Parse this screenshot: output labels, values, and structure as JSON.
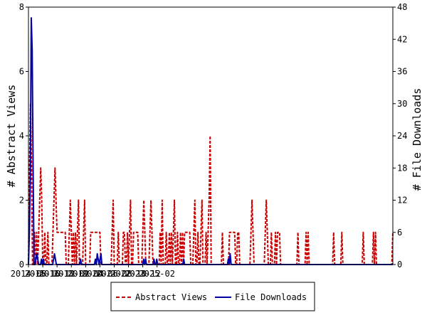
{
  "chart_data": {
    "type": "line",
    "title": "",
    "x_tick_labels": [
      "2014-08",
      "2015-10",
      "2016-12",
      "2018-02",
      "2019-04",
      "2020-06",
      "2021-08",
      "2022-10",
      "2023-12",
      "2025-02"
    ],
    "y_left": {
      "label": "# Abstract Views",
      "range": [
        0,
        8
      ],
      "ticks": [
        "0",
        "2",
        "4",
        "6",
        "8"
      ]
    },
    "y_right": {
      "label": "# File Downloads",
      "range": [
        0,
        48
      ],
      "ticks": [
        "0",
        "6",
        "12",
        "18",
        "24",
        "30",
        "36",
        "42",
        "48"
      ]
    },
    "x_range_months": [
      "2014-08",
      "2025-09"
    ],
    "grid": false,
    "legend_position": "bottom",
    "series": [
      {
        "name": "Abstract Views",
        "axis": "left",
        "color": "#cc0000",
        "style": "dashed",
        "values": [
          0,
          3,
          5,
          3,
          0,
          0,
          1,
          0,
          1,
          0,
          1,
          2,
          3,
          2,
          0,
          0,
          1,
          0,
          0,
          1,
          0,
          0,
          0,
          0,
          1,
          2,
          3,
          2,
          1,
          1,
          1,
          1,
          1,
          1,
          1,
          1,
          1,
          0,
          0,
          0,
          1,
          2,
          1,
          0,
          1,
          0,
          1,
          0,
          1,
          2,
          0,
          0,
          0,
          0,
          1,
          2,
          0,
          0,
          0,
          0,
          0,
          1,
          1,
          1,
          1,
          1,
          1,
          1,
          1,
          1,
          1,
          0,
          0,
          0,
          0,
          0,
          0,
          0,
          0,
          0,
          0,
          0,
          1,
          2,
          0,
          0,
          0,
          0,
          1,
          0,
          0,
          0,
          0,
          1,
          1,
          0,
          0,
          1,
          0,
          1,
          2,
          0,
          0,
          1,
          1,
          1,
          1,
          1,
          0,
          0,
          0,
          0,
          1,
          2,
          1,
          0,
          0,
          0,
          0,
          1,
          2,
          1,
          0,
          0,
          0,
          0,
          0,
          0,
          0,
          1,
          0,
          2,
          0,
          0,
          0,
          1,
          0,
          0,
          1,
          0,
          1,
          0,
          1,
          2,
          0,
          0,
          1,
          0,
          0,
          1,
          0,
          1,
          0,
          1,
          1,
          1,
          1,
          1,
          1,
          0,
          0,
          0,
          1,
          2,
          0,
          0,
          1,
          0,
          0,
          1,
          2,
          0,
          0,
          0,
          1,
          0,
          1,
          2,
          4,
          0,
          0,
          0,
          0,
          0,
          0,
          0,
          0,
          0,
          0,
          0,
          1,
          0,
          0,
          0,
          0,
          0,
          0,
          1,
          1,
          1,
          1,
          1,
          1,
          0,
          0,
          1,
          1,
          0,
          0,
          0,
          0,
          0,
          0,
          0,
          0,
          0,
          0,
          0,
          1,
          2,
          1,
          0,
          0,
          0,
          0,
          0,
          0,
          0,
          0,
          0,
          0,
          0,
          1,
          2,
          1,
          0,
          0,
          0,
          1,
          0,
          0,
          0,
          1,
          0,
          1,
          1,
          1,
          0,
          0,
          0,
          0,
          0,
          0,
          0,
          0,
          0,
          0,
          0,
          0,
          0,
          0,
          0,
          0,
          0,
          1,
          0,
          0,
          0,
          0,
          0,
          0,
          0,
          1,
          0,
          1,
          0,
          0,
          0,
          0,
          0,
          0,
          0,
          0,
          0,
          0,
          0,
          0,
          0,
          0,
          0,
          0,
          0,
          0,
          0,
          0,
          0,
          0,
          0,
          0,
          1,
          0,
          0,
          0,
          0,
          0,
          0,
          0,
          1,
          0,
          0,
          0,
          0,
          0,
          0,
          0,
          0,
          0,
          0,
          0,
          0,
          0,
          0,
          0,
          0,
          0,
          0,
          0,
          0,
          1,
          0,
          0,
          0,
          0,
          0,
          0,
          0,
          0,
          0,
          1,
          0,
          1,
          0,
          0,
          0,
          0,
          0,
          0,
          0,
          0,
          0,
          0,
          0,
          0,
          0,
          0,
          0,
          0,
          1
        ]
      },
      {
        "name": "File Downloads",
        "axis": "right",
        "color": "#0000aa",
        "style": "solid",
        "values": [
          0,
          6,
          17,
          46,
          40,
          18,
          0,
          0,
          1,
          2,
          1,
          0,
          0,
          0,
          1,
          0,
          1,
          0,
          0,
          0,
          0,
          0,
          0,
          0,
          0,
          0,
          0,
          1,
          2,
          1,
          0,
          0,
          0,
          0,
          0,
          0,
          0,
          0,
          0,
          0,
          0,
          0,
          0,
          0,
          0,
          0,
          0,
          0,
          0,
          0,
          0,
          0,
          0,
          0,
          0,
          0,
          1,
          0,
          0,
          0,
          0,
          0,
          0,
          0,
          0,
          0,
          0,
          0,
          0,
          0,
          0,
          0,
          1,
          0,
          2,
          1,
          0,
          1,
          2,
          0,
          0,
          0,
          0,
          0,
          0,
          0,
          0,
          0,
          0,
          0,
          0,
          0,
          0,
          0,
          0,
          0,
          0,
          0,
          0,
          0,
          0,
          0,
          0,
          0,
          0,
          0,
          0,
          0,
          0,
          0,
          0,
          0,
          0,
          0,
          0,
          0,
          0,
          0,
          0,
          0,
          0,
          0,
          0,
          0,
          1,
          0,
          1,
          0,
          0,
          0,
          0,
          0,
          0,
          0,
          0,
          1,
          0,
          0,
          1,
          0,
          0,
          0,
          0,
          0,
          0,
          0,
          0,
          0,
          0,
          0,
          0,
          0,
          0,
          0,
          0,
          0,
          0,
          0,
          0,
          0,
          0,
          0,
          0,
          0,
          0,
          0,
          0,
          1,
          0,
          0,
          0,
          0,
          0,
          0,
          0,
          0,
          0,
          0,
          0,
          0,
          0,
          0,
          0,
          0,
          0,
          0,
          0,
          0,
          0,
          0,
          0,
          0,
          0,
          0,
          0,
          0,
          0,
          0,
          0,
          0,
          0,
          0,
          0,
          0,
          0,
          0,
          0,
          0,
          0,
          0,
          0,
          0,
          0,
          0,
          0,
          1,
          0,
          2,
          0,
          0,
          0,
          0,
          0,
          0,
          0,
          0,
          0,
          0,
          0,
          0,
          0,
          0,
          0,
          0,
          0,
          0,
          0,
          0,
          0,
          0,
          0,
          0,
          0,
          0,
          0,
          0,
          0,
          0,
          0,
          0,
          0,
          0,
          0,
          0,
          0,
          0,
          0,
          0,
          0,
          0,
          0,
          0,
          0,
          0,
          0,
          0,
          0,
          0,
          0,
          0,
          0,
          0,
          0,
          0,
          0,
          0,
          0,
          0,
          0,
          0,
          0,
          0,
          0,
          0,
          0,
          0,
          0,
          0,
          0,
          0,
          0,
          0,
          0,
          0,
          0,
          0,
          0,
          0,
          0,
          0,
          0,
          0,
          0,
          0,
          0,
          0,
          0,
          0,
          0,
          0,
          0,
          0,
          0,
          0,
          0,
          0,
          0,
          0,
          0,
          0,
          0,
          0,
          0,
          0,
          0,
          0,
          0,
          0,
          0,
          0,
          0,
          0,
          0,
          0,
          0,
          0,
          0,
          0,
          0,
          0,
          0,
          0,
          0,
          0,
          0,
          0,
          0,
          0,
          0,
          0,
          0,
          0,
          0,
          0,
          0,
          0,
          0,
          0,
          0,
          0,
          0,
          0,
          0,
          0,
          0,
          0,
          0,
          0,
          0,
          0,
          0,
          0,
          0,
          0,
          0,
          0,
          0,
          0,
          0,
          0,
          0,
          0,
          0,
          0,
          0,
          0,
          0,
          0,
          0,
          0,
          0,
          0,
          0
        ]
      }
    ]
  }
}
